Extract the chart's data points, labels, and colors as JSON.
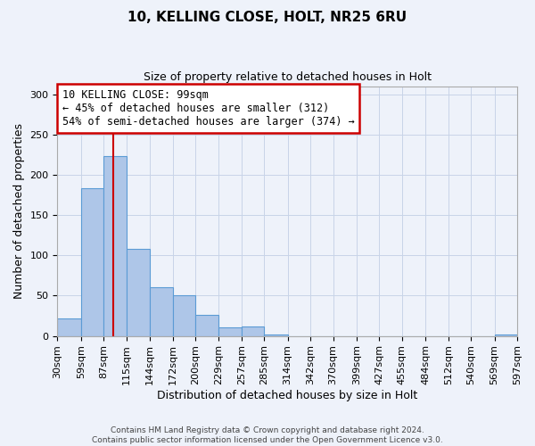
{
  "title": "10, KELLING CLOSE, HOLT, NR25 6RU",
  "subtitle": "Size of property relative to detached houses in Holt",
  "xlabel": "Distribution of detached houses by size in Holt",
  "ylabel": "Number of detached properties",
  "bar_values": [
    22,
    184,
    224,
    108,
    61,
    50,
    26,
    11,
    12,
    2,
    0,
    0,
    0,
    0,
    0,
    0,
    0,
    0,
    0,
    2
  ],
  "bin_edges": [
    30,
    59,
    87,
    115,
    144,
    172,
    200,
    229,
    257,
    285,
    314,
    342,
    370,
    399,
    427,
    455,
    484,
    512,
    540,
    569,
    597
  ],
  "tick_labels": [
    "30sqm",
    "59sqm",
    "87sqm",
    "115sqm",
    "144sqm",
    "172sqm",
    "200sqm",
    "229sqm",
    "257sqm",
    "285sqm",
    "314sqm",
    "342sqm",
    "370sqm",
    "399sqm",
    "427sqm",
    "455sqm",
    "484sqm",
    "512sqm",
    "540sqm",
    "569sqm",
    "597sqm"
  ],
  "bar_color": "#aec6e8",
  "bar_edge_color": "#5b9bd5",
  "background_color": "#eef2fa",
  "grid_color": "#c8d4e8",
  "vline_x": 99,
  "vline_color": "#cc0000",
  "annotation_title": "10 KELLING CLOSE: 99sqm",
  "annotation_line1": "← 45% of detached houses are smaller (312)",
  "annotation_line2": "54% of semi-detached houses are larger (374) →",
  "annotation_box_color": "#cc0000",
  "ylim": [
    0,
    310
  ],
  "yticks": [
    0,
    50,
    100,
    150,
    200,
    250,
    300
  ],
  "footer1": "Contains HM Land Registry data © Crown copyright and database right 2024.",
  "footer2": "Contains public sector information licensed under the Open Government Licence v3.0."
}
